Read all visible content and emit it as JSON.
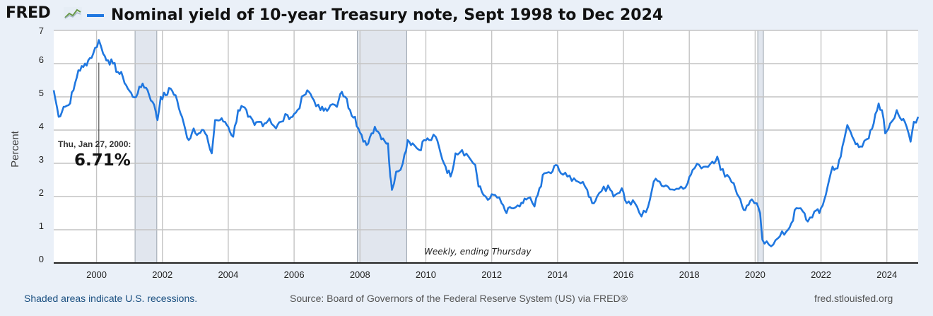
{
  "header": {
    "logo_text": "FRED",
    "logo_icon": "line-chart-icon",
    "accent_color": "#1f77e0"
  },
  "chart_data": {
    "type": "line",
    "title": "Nominal yield of 10-year Treasury note, Sept 1998 to Dec 2024",
    "xlabel": "",
    "ylabel": "Percent",
    "xlim": [
      1998.7,
      2024.95
    ],
    "ylim": [
      0,
      7
    ],
    "grid": true,
    "x_ticks": [
      "2000",
      "2002",
      "2004",
      "2006",
      "2008",
      "2010",
      "2012",
      "2014",
      "2016",
      "2018",
      "2020",
      "2022",
      "2024"
    ],
    "y_ticks": [
      "0",
      "1",
      "2",
      "3",
      "4",
      "5",
      "6",
      "7"
    ],
    "series": [
      {
        "color": "#1f77e0",
        "points": [
          [
            1998.7,
            5.2
          ],
          [
            1998.85,
            4.4
          ],
          [
            1999.0,
            4.7
          ],
          [
            1999.15,
            4.75
          ],
          [
            1999.3,
            5.2
          ],
          [
            1999.45,
            5.8
          ],
          [
            1999.6,
            5.9
          ],
          [
            1999.75,
            6.1
          ],
          [
            1999.9,
            6.3
          ],
          [
            2000.07,
            6.71
          ],
          [
            2000.2,
            6.3
          ],
          [
            2000.35,
            6.1
          ],
          [
            2000.5,
            6.0
          ],
          [
            2000.65,
            5.75
          ],
          [
            2000.8,
            5.6
          ],
          [
            2000.95,
            5.25
          ],
          [
            2001.1,
            5.0
          ],
          [
            2001.25,
            5.1
          ],
          [
            2001.4,
            5.4
          ],
          [
            2001.55,
            5.2
          ],
          [
            2001.7,
            4.85
          ],
          [
            2001.8,
            4.55
          ],
          [
            2001.85,
            4.3
          ],
          [
            2001.95,
            5.0
          ],
          [
            2002.1,
            5.05
          ],
          [
            2002.25,
            5.25
          ],
          [
            2002.4,
            5.05
          ],
          [
            2002.55,
            4.5
          ],
          [
            2002.7,
            4.0
          ],
          [
            2002.8,
            3.7
          ],
          [
            2002.95,
            4.05
          ],
          [
            2003.1,
            3.9
          ],
          [
            2003.25,
            4.0
          ],
          [
            2003.4,
            3.6
          ],
          [
            2003.5,
            3.3
          ],
          [
            2003.6,
            4.3
          ],
          [
            2003.75,
            4.3
          ],
          [
            2003.9,
            4.25
          ],
          [
            2004.0,
            4.1
          ],
          [
            2004.15,
            3.8
          ],
          [
            2004.3,
            4.6
          ],
          [
            2004.45,
            4.7
          ],
          [
            2004.6,
            4.4
          ],
          [
            2004.8,
            4.15
          ],
          [
            2004.95,
            4.25
          ],
          [
            2005.1,
            4.2
          ],
          [
            2005.25,
            4.35
          ],
          [
            2005.45,
            4.05
          ],
          [
            2005.6,
            4.25
          ],
          [
            2005.8,
            4.45
          ],
          [
            2005.95,
            4.4
          ],
          [
            2006.1,
            4.6
          ],
          [
            2006.3,
            5.05
          ],
          [
            2006.45,
            5.15
          ],
          [
            2006.6,
            4.9
          ],
          [
            2006.8,
            4.6
          ],
          [
            2006.95,
            4.65
          ],
          [
            2007.1,
            4.75
          ],
          [
            2007.3,
            4.7
          ],
          [
            2007.45,
            5.15
          ],
          [
            2007.55,
            5.0
          ],
          [
            2007.7,
            4.6
          ],
          [
            2007.85,
            4.4
          ],
          [
            2007.95,
            4.05
          ],
          [
            2008.1,
            3.65
          ],
          [
            2008.2,
            3.55
          ],
          [
            2008.35,
            3.9
          ],
          [
            2008.45,
            4.1
          ],
          [
            2008.55,
            3.95
          ],
          [
            2008.7,
            3.75
          ],
          [
            2008.85,
            3.6
          ],
          [
            2008.92,
            2.6
          ],
          [
            2008.97,
            2.2
          ],
          [
            2009.1,
            2.75
          ],
          [
            2009.3,
            3.0
          ],
          [
            2009.45,
            3.7
          ],
          [
            2009.6,
            3.6
          ],
          [
            2009.8,
            3.4
          ],
          [
            2009.95,
            3.7
          ],
          [
            2010.1,
            3.7
          ],
          [
            2010.3,
            3.8
          ],
          [
            2010.45,
            3.3
          ],
          [
            2010.6,
            2.9
          ],
          [
            2010.75,
            2.6
          ],
          [
            2010.9,
            3.3
          ],
          [
            2011.1,
            3.4
          ],
          [
            2011.3,
            3.2
          ],
          [
            2011.5,
            2.95
          ],
          [
            2011.6,
            2.3
          ],
          [
            2011.75,
            2.05
          ],
          [
            2011.95,
            1.95
          ],
          [
            2012.1,
            2.05
          ],
          [
            2012.3,
            1.8
          ],
          [
            2012.45,
            1.5
          ],
          [
            2012.6,
            1.65
          ],
          [
            2012.85,
            1.7
          ],
          [
            2012.95,
            1.8
          ],
          [
            2013.1,
            1.95
          ],
          [
            2013.3,
            1.7
          ],
          [
            2013.45,
            2.25
          ],
          [
            2013.6,
            2.7
          ],
          [
            2013.8,
            2.7
          ],
          [
            2013.95,
            2.95
          ],
          [
            2014.1,
            2.7
          ],
          [
            2014.3,
            2.6
          ],
          [
            2014.5,
            2.55
          ],
          [
            2014.7,
            2.4
          ],
          [
            2014.9,
            2.2
          ],
          [
            2015.05,
            1.8
          ],
          [
            2015.2,
            2.0
          ],
          [
            2015.4,
            2.3
          ],
          [
            2015.6,
            2.2
          ],
          [
            2015.75,
            2.05
          ],
          [
            2015.95,
            2.25
          ],
          [
            2016.1,
            1.8
          ],
          [
            2016.35,
            1.8
          ],
          [
            2016.55,
            1.4
          ],
          [
            2016.75,
            1.7
          ],
          [
            2016.92,
            2.45
          ],
          [
            2017.1,
            2.45
          ],
          [
            2017.35,
            2.3
          ],
          [
            2017.55,
            2.2
          ],
          [
            2017.75,
            2.3
          ],
          [
            2017.95,
            2.4
          ],
          [
            2018.1,
            2.8
          ],
          [
            2018.3,
            2.95
          ],
          [
            2018.5,
            2.9
          ],
          [
            2018.7,
            3.05
          ],
          [
            2018.85,
            3.2
          ],
          [
            2018.95,
            2.8
          ],
          [
            2019.15,
            2.65
          ],
          [
            2019.35,
            2.4
          ],
          [
            2019.5,
            2.0
          ],
          [
            2019.65,
            1.6
          ],
          [
            2019.8,
            1.75
          ],
          [
            2019.95,
            1.85
          ],
          [
            2020.0,
            1.8
          ],
          [
            2020.15,
            1.5
          ],
          [
            2020.22,
            0.7
          ],
          [
            2020.35,
            0.65
          ],
          [
            2020.55,
            0.55
          ],
          [
            2020.75,
            0.8
          ],
          [
            2020.95,
            0.95
          ],
          [
            2021.1,
            1.2
          ],
          [
            2021.25,
            1.65
          ],
          [
            2021.45,
            1.55
          ],
          [
            2021.6,
            1.25
          ],
          [
            2021.8,
            1.55
          ],
          [
            2021.95,
            1.5
          ],
          [
            2022.1,
            1.9
          ],
          [
            2022.2,
            2.3
          ],
          [
            2022.35,
            2.9
          ],
          [
            2022.5,
            2.85
          ],
          [
            2022.6,
            3.2
          ],
          [
            2022.7,
            3.7
          ],
          [
            2022.8,
            4.15
          ],
          [
            2022.95,
            3.8
          ],
          [
            2023.1,
            3.6
          ],
          [
            2023.25,
            3.5
          ],
          [
            2023.45,
            3.75
          ],
          [
            2023.6,
            4.2
          ],
          [
            2023.75,
            4.8
          ],
          [
            2023.85,
            4.6
          ],
          [
            2023.95,
            3.9
          ],
          [
            2024.1,
            4.2
          ],
          [
            2024.3,
            4.6
          ],
          [
            2024.45,
            4.3
          ],
          [
            2024.6,
            4.1
          ],
          [
            2024.72,
            3.65
          ],
          [
            2024.82,
            4.25
          ],
          [
            2024.95,
            4.4
          ]
        ]
      }
    ],
    "recessions": [
      [
        2001.17,
        2001.83
      ],
      [
        2007.92,
        2009.42
      ],
      [
        2020.08,
        2020.25
      ]
    ],
    "annotations": [
      {
        "x": 2000.07,
        "y": 6.71,
        "date_label": "Thu, Jan 27, 2000:",
        "value_label": "6.71%"
      }
    ],
    "frequency_note": "Weekly, ending Thursday"
  },
  "footer": {
    "recession_note": "Shaded areas indicate U.S. recessions.",
    "source": "Source: Board of Governors of the Federal Reserve System (US) via FRED®",
    "site": "fred.stlouisfed.org"
  }
}
